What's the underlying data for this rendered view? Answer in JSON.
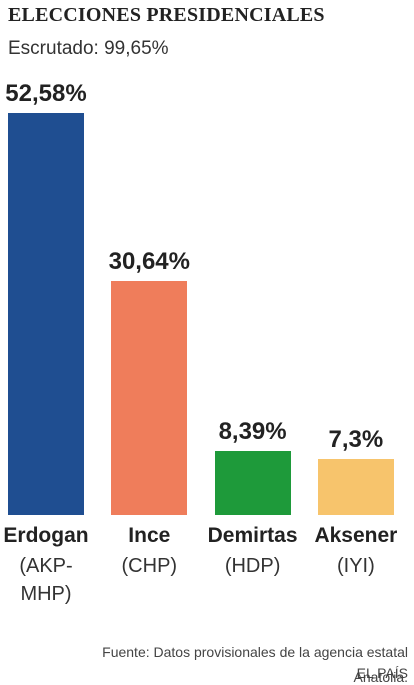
{
  "chart_data": {
    "type": "bar",
    "title": "ELECCIONES PRESIDENCIALES",
    "subtitle": "Escrutado: 99,65%",
    "categories": [
      "Erdogan",
      "Ince",
      "Demirtas",
      "Aksener"
    ],
    "parties": [
      "(AKP-MHP)",
      "(CHP)",
      "(HDP)",
      "(IYI)"
    ],
    "values": [
      52.58,
      30.64,
      8.39,
      7.3
    ],
    "value_labels": [
      "52,58%",
      "30,64%",
      "8,39%",
      "7,3%"
    ],
    "colors": [
      "#1f4e91",
      "#ef7d5b",
      "#1e9a3a",
      "#f7c46c"
    ],
    "source": "Fuente: Datos provisionales de la agencia estatal Anatolia.",
    "credit": "EL PAÍS"
  }
}
